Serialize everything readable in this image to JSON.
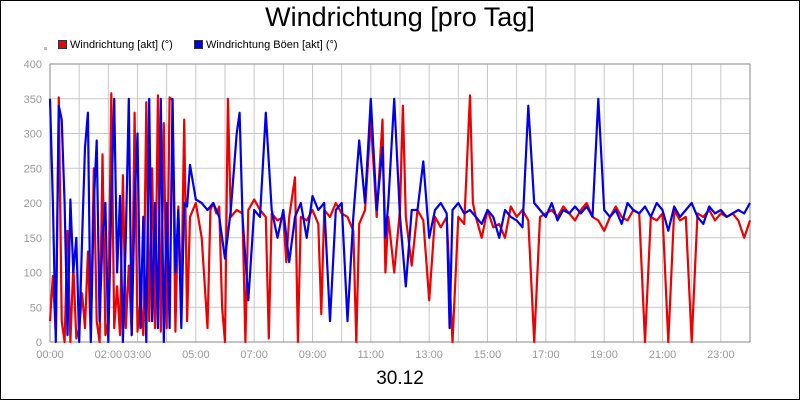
{
  "colors": {
    "series1": "#ee0000",
    "series2": "#0000ee",
    "grid": "#c8c8c8",
    "axis": "#888888",
    "tick_text": "#999999"
  },
  "chart_data": {
    "type": "line",
    "title": "Windrichtung [pro Tag]",
    "date_label": "30.12",
    "ylim": [
      0,
      400
    ],
    "yticks": [
      0,
      50,
      100,
      150,
      200,
      250,
      300,
      350,
      400
    ],
    "xlim_hours": [
      0,
      24
    ],
    "xticks": [
      {
        "h": 0,
        "label": "00:00"
      },
      {
        "h": 2,
        "label": "02:00"
      },
      {
        "h": 3,
        "label": "03:00"
      },
      {
        "h": 5,
        "label": "05:00"
      },
      {
        "h": 7,
        "label": "07:00"
      },
      {
        "h": 9,
        "label": "09:00"
      },
      {
        "h": 11,
        "label": "11:00"
      },
      {
        "h": 13,
        "label": "13:00"
      },
      {
        "h": 15,
        "label": "15:00"
      },
      {
        "h": 17,
        "label": "17:00"
      },
      {
        "h": 19,
        "label": "19:00"
      },
      {
        "h": 21,
        "label": "21:00"
      },
      {
        "h": 23,
        "label": "23:00"
      }
    ],
    "grid": true,
    "legend_position": "top-left",
    "series": [
      {
        "name": "Windrichtung [akt] (°)",
        "color": "#ee0000",
        "points": [
          [
            0.0,
            30
          ],
          [
            0.1,
            95
          ],
          [
            0.2,
            10
          ],
          [
            0.3,
            352
          ],
          [
            0.4,
            30
          ],
          [
            0.5,
            0
          ],
          [
            0.6,
            160
          ],
          [
            0.7,
            0
          ],
          [
            0.8,
            110
          ],
          [
            0.9,
            5
          ],
          [
            1.0,
            20
          ],
          [
            1.1,
            70
          ],
          [
            1.2,
            20
          ],
          [
            1.3,
            130
          ],
          [
            1.4,
            5
          ],
          [
            1.5,
            250
          ],
          [
            1.6,
            30
          ],
          [
            1.7,
            0
          ],
          [
            1.8,
            270
          ],
          [
            1.9,
            10
          ],
          [
            2.0,
            30
          ],
          [
            2.1,
            358
          ],
          [
            2.2,
            20
          ],
          [
            2.3,
            80
          ],
          [
            2.4,
            10
          ],
          [
            2.5,
            240
          ],
          [
            2.6,
            20
          ],
          [
            2.7,
            110
          ],
          [
            2.8,
            10
          ],
          [
            2.9,
            330
          ],
          [
            3.0,
            15
          ],
          [
            3.1,
            60
          ],
          [
            3.2,
            10
          ],
          [
            3.3,
            345
          ],
          [
            3.4,
            30
          ],
          [
            3.5,
            250
          ],
          [
            3.6,
            20
          ],
          [
            3.7,
            355
          ],
          [
            3.8,
            15
          ],
          [
            3.9,
            315
          ],
          [
            4.0,
            20
          ],
          [
            4.1,
            352
          ],
          [
            4.2,
            348
          ],
          [
            4.3,
            15
          ],
          [
            4.4,
            195
          ],
          [
            4.5,
            60
          ],
          [
            4.6,
            320
          ],
          [
            4.7,
            30
          ],
          [
            4.8,
            180
          ],
          [
            5.0,
            200
          ],
          [
            5.2,
            150
          ],
          [
            5.4,
            20
          ],
          [
            5.5,
            190
          ],
          [
            5.6,
            200
          ],
          [
            5.7,
            185
          ],
          [
            5.8,
            195
          ],
          [
            5.9,
            50
          ],
          [
            6.0,
            0
          ],
          [
            6.1,
            350
          ],
          [
            6.2,
            180
          ],
          [
            6.4,
            190
          ],
          [
            6.6,
            185
          ],
          [
            6.7,
            0
          ],
          [
            6.8,
            190
          ],
          [
            7.0,
            205
          ],
          [
            7.2,
            190
          ],
          [
            7.4,
            180
          ],
          [
            7.5,
            5
          ],
          [
            7.6,
            185
          ],
          [
            7.8,
            175
          ],
          [
            8.0,
            180
          ],
          [
            8.1,
            115
          ],
          [
            8.2,
            180
          ],
          [
            8.4,
            237
          ],
          [
            8.5,
            0
          ],
          [
            8.6,
            180
          ],
          [
            8.8,
            175
          ],
          [
            9.0,
            190
          ],
          [
            9.2,
            170
          ],
          [
            9.3,
            40
          ],
          [
            9.4,
            190
          ],
          [
            9.6,
            180
          ],
          [
            9.8,
            200
          ],
          [
            10.0,
            185
          ],
          [
            10.2,
            180
          ],
          [
            10.4,
            160
          ],
          [
            10.5,
            0
          ],
          [
            10.6,
            170
          ],
          [
            10.8,
            190
          ],
          [
            11.0,
            320
          ],
          [
            11.2,
            180
          ],
          [
            11.4,
            320
          ],
          [
            11.5,
            100
          ],
          [
            11.6,
            180
          ],
          [
            11.8,
            100
          ],
          [
            12.0,
            190
          ],
          [
            12.1,
            340
          ],
          [
            12.2,
            180
          ],
          [
            12.4,
            110
          ],
          [
            12.6,
            190
          ],
          [
            12.8,
            175
          ],
          [
            13.0,
            60
          ],
          [
            13.2,
            180
          ],
          [
            13.4,
            165
          ],
          [
            13.6,
            180
          ],
          [
            13.8,
            0
          ],
          [
            14.0,
            180
          ],
          [
            14.2,
            170
          ],
          [
            14.4,
            355
          ],
          [
            14.5,
            200
          ],
          [
            14.6,
            180
          ],
          [
            14.8,
            150
          ],
          [
            15.0,
            190
          ],
          [
            15.2,
            165
          ],
          [
            15.4,
            170
          ],
          [
            15.6,
            150
          ],
          [
            15.8,
            195
          ],
          [
            16.0,
            180
          ],
          [
            16.2,
            190
          ],
          [
            16.4,
            175
          ],
          [
            16.6,
            0
          ],
          [
            16.8,
            180
          ],
          [
            17.0,
            185
          ],
          [
            17.2,
            190
          ],
          [
            17.4,
            180
          ],
          [
            17.6,
            195
          ],
          [
            17.8,
            185
          ],
          [
            18.0,
            175
          ],
          [
            18.2,
            190
          ],
          [
            18.4,
            200
          ],
          [
            18.6,
            180
          ],
          [
            18.8,
            175
          ],
          [
            19.0,
            160
          ],
          [
            19.2,
            180
          ],
          [
            19.4,
            195
          ],
          [
            19.6,
            180
          ],
          [
            19.8,
            175
          ],
          [
            20.0,
            190
          ],
          [
            20.2,
            185
          ],
          [
            20.4,
            0
          ],
          [
            20.6,
            180
          ],
          [
            20.8,
            175
          ],
          [
            21.0,
            185
          ],
          [
            21.2,
            0
          ],
          [
            21.4,
            190
          ],
          [
            21.6,
            175
          ],
          [
            21.8,
            180
          ],
          [
            22.0,
            0
          ],
          [
            22.2,
            185
          ],
          [
            22.4,
            180
          ],
          [
            22.6,
            190
          ],
          [
            22.8,
            175
          ],
          [
            23.0,
            185
          ],
          [
            23.2,
            180
          ],
          [
            23.4,
            185
          ],
          [
            23.6,
            175
          ],
          [
            23.8,
            150
          ],
          [
            24.0,
            175
          ]
        ]
      },
      {
        "name": "Windrichtung Böen [akt] (°)",
        "color": "#0000ee",
        "points": [
          [
            0.0,
            350
          ],
          [
            0.1,
            200
          ],
          [
            0.2,
            0
          ],
          [
            0.3,
            340
          ],
          [
            0.4,
            320
          ],
          [
            0.5,
            200
          ],
          [
            0.6,
            10
          ],
          [
            0.7,
            205
          ],
          [
            0.8,
            100
          ],
          [
            0.9,
            150
          ],
          [
            1.0,
            0
          ],
          [
            1.1,
            150
          ],
          [
            1.2,
            280
          ],
          [
            1.3,
            330
          ],
          [
            1.4,
            0
          ],
          [
            1.5,
            200
          ],
          [
            1.6,
            290
          ],
          [
            1.7,
            30
          ],
          [
            1.8,
            150
          ],
          [
            1.9,
            200
          ],
          [
            2.0,
            0
          ],
          [
            2.1,
            200
          ],
          [
            2.2,
            350
          ],
          [
            2.3,
            100
          ],
          [
            2.4,
            210
          ],
          [
            2.5,
            0
          ],
          [
            2.6,
            150
          ],
          [
            2.7,
            350
          ],
          [
            2.8,
            10
          ],
          [
            2.9,
            200
          ],
          [
            3.0,
            300
          ],
          [
            3.1,
            20
          ],
          [
            3.2,
            180
          ],
          [
            3.3,
            0
          ],
          [
            3.4,
            350
          ],
          [
            3.5,
            30
          ],
          [
            3.6,
            200
          ],
          [
            3.7,
            20
          ],
          [
            3.8,
            350
          ],
          [
            3.9,
            0
          ],
          [
            4.0,
            200
          ],
          [
            4.1,
            20
          ],
          [
            4.2,
            350
          ],
          [
            4.3,
            100
          ],
          [
            4.4,
            190
          ],
          [
            4.5,
            20
          ],
          [
            4.6,
            200
          ],
          [
            4.7,
            195
          ],
          [
            4.8,
            255
          ],
          [
            5.0,
            205
          ],
          [
            5.2,
            200
          ],
          [
            5.4,
            190
          ],
          [
            5.6,
            200
          ],
          [
            5.8,
            180
          ],
          [
            6.0,
            120
          ],
          [
            6.2,
            190
          ],
          [
            6.4,
            300
          ],
          [
            6.5,
            330
          ],
          [
            6.6,
            180
          ],
          [
            6.8,
            60
          ],
          [
            7.0,
            190
          ],
          [
            7.2,
            180
          ],
          [
            7.4,
            330
          ],
          [
            7.6,
            190
          ],
          [
            7.8,
            150
          ],
          [
            8.0,
            190
          ],
          [
            8.2,
            115
          ],
          [
            8.4,
            180
          ],
          [
            8.6,
            200
          ],
          [
            8.8,
            150
          ],
          [
            9.0,
            210
          ],
          [
            9.2,
            190
          ],
          [
            9.4,
            200
          ],
          [
            9.6,
            30
          ],
          [
            9.8,
            190
          ],
          [
            10.0,
            200
          ],
          [
            10.2,
            30
          ],
          [
            10.4,
            180
          ],
          [
            10.6,
            290
          ],
          [
            10.8,
            200
          ],
          [
            11.0,
            350
          ],
          [
            11.2,
            190
          ],
          [
            11.4,
            280
          ],
          [
            11.5,
            150
          ],
          [
            11.6,
            200
          ],
          [
            11.8,
            350
          ],
          [
            12.0,
            180
          ],
          [
            12.2,
            80
          ],
          [
            12.4,
            190
          ],
          [
            12.6,
            190
          ],
          [
            12.8,
            260
          ],
          [
            13.0,
            150
          ],
          [
            13.2,
            190
          ],
          [
            13.4,
            200
          ],
          [
            13.6,
            185
          ],
          [
            13.7,
            20
          ],
          [
            13.8,
            190
          ],
          [
            14.0,
            200
          ],
          [
            14.2,
            185
          ],
          [
            14.4,
            190
          ],
          [
            14.6,
            180
          ],
          [
            14.8,
            170
          ],
          [
            15.0,
            190
          ],
          [
            15.2,
            180
          ],
          [
            15.4,
            150
          ],
          [
            15.6,
            190
          ],
          [
            15.8,
            180
          ],
          [
            16.0,
            175
          ],
          [
            16.2,
            165
          ],
          [
            16.4,
            340
          ],
          [
            16.6,
            200
          ],
          [
            16.8,
            190
          ],
          [
            17.0,
            180
          ],
          [
            17.2,
            200
          ],
          [
            17.4,
            175
          ],
          [
            17.6,
            190
          ],
          [
            17.8,
            185
          ],
          [
            18.0,
            195
          ],
          [
            18.2,
            185
          ],
          [
            18.4,
            195
          ],
          [
            18.6,
            180
          ],
          [
            18.8,
            350
          ],
          [
            19.0,
            190
          ],
          [
            19.2,
            180
          ],
          [
            19.4,
            190
          ],
          [
            19.6,
            170
          ],
          [
            19.8,
            200
          ],
          [
            20.0,
            190
          ],
          [
            20.2,
            185
          ],
          [
            20.4,
            195
          ],
          [
            20.6,
            180
          ],
          [
            20.8,
            200
          ],
          [
            21.0,
            190
          ],
          [
            21.2,
            160
          ],
          [
            21.4,
            195
          ],
          [
            21.6,
            180
          ],
          [
            21.8,
            190
          ],
          [
            22.0,
            200
          ],
          [
            22.2,
            180
          ],
          [
            22.4,
            170
          ],
          [
            22.6,
            195
          ],
          [
            22.8,
            185
          ],
          [
            23.0,
            190
          ],
          [
            23.2,
            180
          ],
          [
            23.4,
            185
          ],
          [
            23.6,
            190
          ],
          [
            23.8,
            185
          ],
          [
            24.0,
            200
          ]
        ]
      }
    ]
  }
}
